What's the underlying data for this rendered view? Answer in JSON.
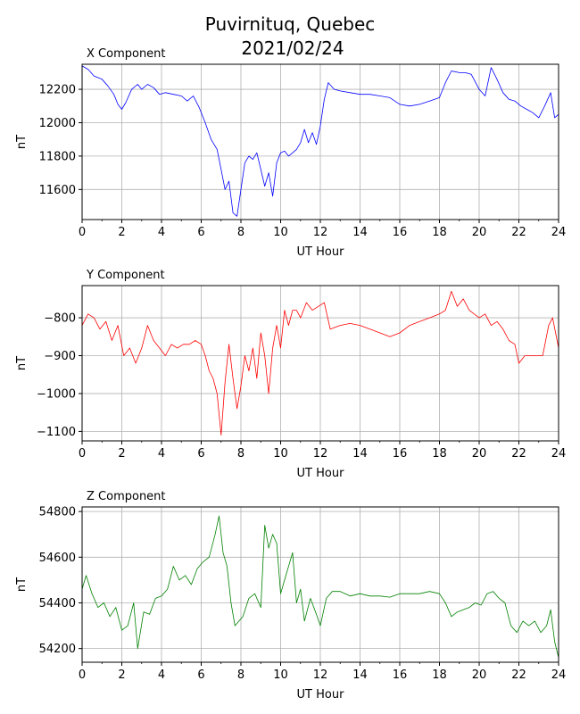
{
  "title_line1": "Puvirnituq, Quebec",
  "title_line2": "2021/02/24",
  "chart_data": [
    {
      "type": "line",
      "title": "X Component",
      "xlabel": "UT Hour",
      "ylabel": "nT",
      "color": "#0000ff",
      "xlim": [
        0,
        24
      ],
      "ylim": [
        11420,
        12350
      ],
      "xticks": [
        0,
        2,
        4,
        6,
        8,
        10,
        12,
        14,
        16,
        18,
        20,
        22,
        24
      ],
      "yticks": [
        11600,
        11800,
        12000,
        12200
      ],
      "ytick_labels": [
        "11600",
        "11800",
        "12000",
        "12200"
      ],
      "grid": true,
      "x": [
        0,
        0.3,
        0.6,
        1.0,
        1.3,
        1.6,
        1.8,
        2.0,
        2.2,
        2.5,
        2.8,
        3.0,
        3.3,
        3.6,
        3.9,
        4.2,
        4.6,
        5.0,
        5.3,
        5.6,
        5.9,
        6.2,
        6.5,
        6.8,
        7.0,
        7.2,
        7.4,
        7.6,
        7.8,
        8.0,
        8.2,
        8.4,
        8.6,
        8.8,
        9.0,
        9.2,
        9.4,
        9.6,
        9.8,
        10.0,
        10.2,
        10.4,
        10.6,
        10.8,
        11.0,
        11.2,
        11.4,
        11.6,
        11.8,
        12.0,
        12.2,
        12.4,
        12.7,
        13.0,
        13.5,
        14.0,
        14.5,
        15.0,
        15.5,
        16.0,
        16.5,
        17.0,
        17.5,
        18.0,
        18.3,
        18.6,
        19.0,
        19.3,
        19.6,
        20.0,
        20.3,
        20.6,
        20.9,
        21.2,
        21.5,
        21.8,
        22.1,
        22.4,
        22.7,
        23.0,
        23.3,
        23.6,
        23.8,
        24.0
      ],
      "values": [
        12340,
        12320,
        12280,
        12260,
        12220,
        12170,
        12110,
        12080,
        12120,
        12200,
        12230,
        12200,
        12230,
        12210,
        12170,
        12180,
        12170,
        12160,
        12130,
        12160,
        12090,
        12000,
        11900,
        11840,
        11720,
        11600,
        11650,
        11460,
        11440,
        11600,
        11760,
        11800,
        11780,
        11820,
        11720,
        11620,
        11700,
        11560,
        11760,
        11820,
        11830,
        11800,
        11820,
        11840,
        11880,
        11960,
        11880,
        11940,
        11870,
        11980,
        12140,
        12240,
        12200,
        12190,
        12180,
        12170,
        12170,
        12160,
        12150,
        12110,
        12100,
        12110,
        12130,
        12150,
        12240,
        12310,
        12300,
        12300,
        12290,
        12200,
        12160,
        12330,
        12260,
        12180,
        12140,
        12130,
        12100,
        12080,
        12060,
        12030,
        12100,
        12180,
        12030,
        12050
      ]
    },
    {
      "type": "line",
      "title": "Y Component",
      "xlabel": "UT Hour",
      "ylabel": "nT",
      "color": "#ff0000",
      "xlim": [
        0,
        24
      ],
      "ylim": [
        -1125,
        -715
      ],
      "xticks": [
        0,
        2,
        4,
        6,
        8,
        10,
        12,
        14,
        16,
        18,
        20,
        22,
        24
      ],
      "yticks": [
        -1100,
        -1000,
        -900,
        -800
      ],
      "ytick_labels": [
        "−1100",
        "−1000",
        "−900",
        "−800"
      ],
      "grid": true,
      "x": [
        0,
        0.3,
        0.6,
        0.9,
        1.2,
        1.5,
        1.8,
        2.1,
        2.4,
        2.7,
        3.0,
        3.3,
        3.6,
        3.9,
        4.2,
        4.5,
        4.8,
        5.1,
        5.4,
        5.7,
        6.0,
        6.2,
        6.4,
        6.6,
        6.8,
        7.0,
        7.2,
        7.4,
        7.6,
        7.8,
        8.0,
        8.2,
        8.4,
        8.6,
        8.8,
        9.0,
        9.2,
        9.4,
        9.6,
        9.8,
        10.0,
        10.2,
        10.4,
        10.6,
        10.8,
        11.0,
        11.3,
        11.6,
        11.9,
        12.2,
        12.5,
        13.0,
        13.5,
        14.0,
        14.5,
        15.0,
        15.5,
        16.0,
        16.5,
        17.0,
        17.5,
        18.0,
        18.3,
        18.6,
        18.9,
        19.2,
        19.5,
        20.0,
        20.3,
        20.6,
        20.9,
        21.2,
        21.5,
        21.8,
        22.0,
        22.3,
        22.6,
        22.9,
        23.2,
        23.5,
        23.7,
        24.0
      ],
      "values": [
        -820,
        -790,
        -800,
        -830,
        -810,
        -860,
        -820,
        -900,
        -880,
        -920,
        -880,
        -820,
        -860,
        -880,
        -900,
        -870,
        -880,
        -870,
        -870,
        -860,
        -870,
        -900,
        -940,
        -960,
        -1000,
        -1110,
        -970,
        -870,
        -960,
        -1040,
        -980,
        -900,
        -940,
        -880,
        -960,
        -840,
        -900,
        -1000,
        -880,
        -820,
        -880,
        -780,
        -820,
        -780,
        -780,
        -800,
        -760,
        -780,
        -770,
        -760,
        -830,
        -820,
        -815,
        -820,
        -830,
        -840,
        -850,
        -840,
        -820,
        -810,
        -800,
        -790,
        -780,
        -730,
        -770,
        -750,
        -780,
        -800,
        -790,
        -820,
        -810,
        -830,
        -860,
        -870,
        -920,
        -900,
        -900,
        -900,
        -900,
        -820,
        -800,
        -880
      ]
    },
    {
      "type": "line",
      "title": "Z Component",
      "xlabel": "UT Hour",
      "ylabel": "nT",
      "color": "#008000",
      "xlim": [
        0,
        24
      ],
      "ylim": [
        54140,
        54820
      ],
      "xticks": [
        0,
        2,
        4,
        6,
        8,
        10,
        12,
        14,
        16,
        18,
        20,
        22,
        24
      ],
      "yticks": [
        54200,
        54400,
        54600,
        54800
      ],
      "ytick_labels": [
        "54200",
        "54400",
        "54600",
        "54800"
      ],
      "grid": true,
      "x": [
        0,
        0.2,
        0.5,
        0.8,
        1.1,
        1.4,
        1.7,
        2.0,
        2.3,
        2.6,
        2.8,
        3.1,
        3.4,
        3.7,
        4.0,
        4.3,
        4.6,
        4.9,
        5.2,
        5.5,
        5.8,
        6.1,
        6.4,
        6.7,
        6.9,
        7.1,
        7.3,
        7.5,
        7.7,
        7.9,
        8.1,
        8.4,
        8.7,
        9.0,
        9.2,
        9.4,
        9.6,
        9.8,
        10.0,
        10.2,
        10.4,
        10.6,
        10.8,
        11.0,
        11.2,
        11.5,
        11.8,
        12.0,
        12.3,
        12.6,
        13.0,
        13.5,
        14.0,
        14.5,
        15.0,
        15.5,
        16.0,
        16.5,
        17.0,
        17.5,
        18.0,
        18.3,
        18.6,
        18.9,
        19.2,
        19.5,
        19.8,
        20.1,
        20.4,
        20.7,
        21.0,
        21.3,
        21.6,
        21.9,
        22.2,
        22.5,
        22.8,
        23.1,
        23.4,
        23.6,
        23.8,
        24.0
      ],
      "values": [
        54460,
        54520,
        54440,
        54380,
        54400,
        54340,
        54380,
        54280,
        54300,
        54400,
        54200,
        54360,
        54350,
        54420,
        54430,
        54460,
        54560,
        54500,
        54520,
        54480,
        54550,
        54580,
        54600,
        54700,
        54780,
        54620,
        54560,
        54400,
        54300,
        54320,
        54340,
        54420,
        54440,
        54380,
        54740,
        54640,
        54700,
        54660,
        54440,
        54500,
        54560,
        54620,
        54400,
        54460,
        54320,
        54420,
        54350,
        54300,
        54420,
        54450,
        54450,
        54430,
        54440,
        54430,
        54430,
        54425,
        54440,
        54440,
        54440,
        54450,
        54440,
        54400,
        54340,
        54360,
        54370,
        54380,
        54400,
        54390,
        54440,
        54450,
        54420,
        54400,
        54300,
        54270,
        54320,
        54300,
        54320,
        54270,
        54300,
        54370,
        54230,
        54160
      ]
    }
  ]
}
